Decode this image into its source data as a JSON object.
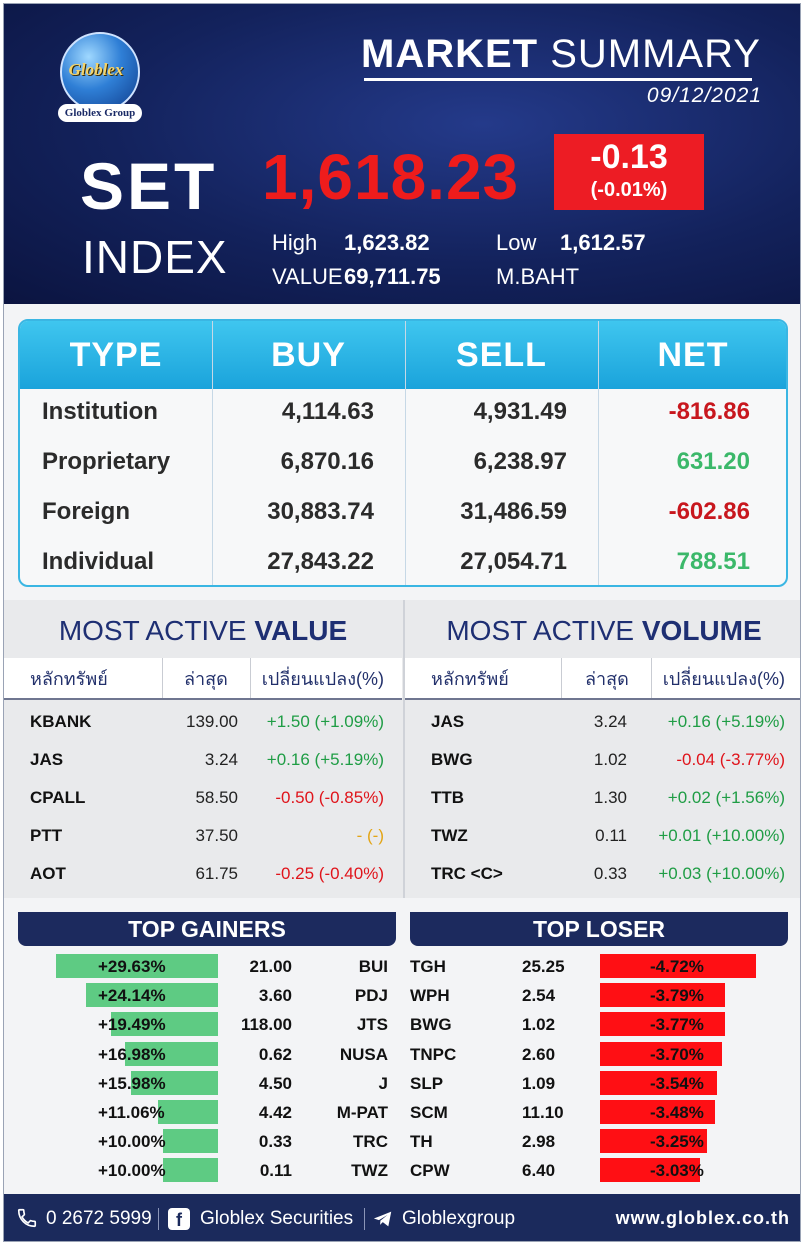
{
  "header": {
    "logo_text": "Globlex",
    "logo_group": "Globlex Group",
    "title_bold": "MARKET",
    "title_rest": " SUMMARY",
    "date": "09/12/2021",
    "set_label": "SET",
    "index_label": "INDEX",
    "index_value": "1,618.23",
    "change": "-0.13",
    "change_pct": "(-0.01%)",
    "high_label": "High",
    "high_value": "1,623.82",
    "low_label": "Low",
    "low_value": "1,612.57",
    "value_label": "VALUE",
    "value_amount": "69,711.75",
    "value_unit": "M.BAHT"
  },
  "investor_table": {
    "headers": [
      "TYPE",
      "BUY",
      "SELL",
      "NET"
    ],
    "rows": [
      {
        "type": "Institution",
        "buy": "4,114.63",
        "sell": "4,931.49",
        "net": "-816.86",
        "net_color": "#c8171e"
      },
      {
        "type": "Proprietary",
        "buy": "6,870.16",
        "sell": "6,238.97",
        "net": "631.20",
        "net_color": "#3bb86a"
      },
      {
        "type": "Foreign",
        "buy": "30,883.74",
        "sell": "31,486.59",
        "net": "-602.86",
        "net_color": "#c8171e"
      },
      {
        "type": "Individual",
        "buy": "27,843.22",
        "sell": "27,054.71",
        "net": "788.51",
        "net_color": "#3bb86a"
      }
    ]
  },
  "most_active_value": {
    "title_light": "MOST ACTIVE ",
    "title_bold": "VALUE",
    "col_symbol": "หลักทรัพย์",
    "col_last": "ล่าสุด",
    "col_change": "เปลี่ยนแปลง(%)",
    "rows": [
      {
        "symbol": "KBANK",
        "last": "139.00",
        "change": "+1.50 (+1.09%)",
        "color": "#1f9d45"
      },
      {
        "symbol": "JAS",
        "last": "3.24",
        "change": "+0.16 (+5.19%)",
        "color": "#1f9d45"
      },
      {
        "symbol": "CPALL",
        "last": "58.50",
        "change": "-0.50 (-0.85%)",
        "color": "#e0141b"
      },
      {
        "symbol": "PTT",
        "last": "37.50",
        "change": "- (-)",
        "color": "#e3a516"
      },
      {
        "symbol": "AOT",
        "last": "61.75",
        "change": "-0.25 (-0.40%)",
        "color": "#e0141b"
      }
    ]
  },
  "most_active_volume": {
    "title_light": "MOST ACTIVE ",
    "title_bold": "VOLUME",
    "col_symbol": "หลักทรัพย์",
    "col_last": "ล่าสุด",
    "col_change": "เปลี่ยนแปลง(%)",
    "rows": [
      {
        "symbol": "JAS",
        "last": "3.24",
        "change": "+0.16 (+5.19%)",
        "color": "#1f9d45"
      },
      {
        "symbol": "BWG",
        "last": "1.02",
        "change": "-0.04 (-3.77%)",
        "color": "#e0141b"
      },
      {
        "symbol": "TTB",
        "last": "1.30",
        "change": "+0.02 (+1.56%)",
        "color": "#1f9d45"
      },
      {
        "symbol": "TWZ",
        "last": "0.11",
        "change": "+0.01 (+10.00%)",
        "color": "#1f9d45"
      },
      {
        "symbol": "TRC <C>",
        "last": "0.33",
        "change": "+0.03 (+10.00%)",
        "color": "#1f9d45"
      }
    ]
  },
  "top_gainers": {
    "title": "TOP GAINERS",
    "rows": [
      {
        "pct": "+29.63%",
        "pct_value": 29.63,
        "price": "21.00",
        "symbol": "BUI"
      },
      {
        "pct": "+24.14%",
        "pct_value": 24.14,
        "price": "3.60",
        "symbol": "PDJ"
      },
      {
        "pct": "+19.49%",
        "pct_value": 19.49,
        "price": "118.00",
        "symbol": "JTS"
      },
      {
        "pct": "+16.98%",
        "pct_value": 16.98,
        "price": "0.62",
        "symbol": "NUSA"
      },
      {
        "pct": "+15.98%",
        "pct_value": 15.98,
        "price": "4.50",
        "symbol": "J"
      },
      {
        "pct": "+11.06%",
        "pct_value": 11.06,
        "price": "4.42",
        "symbol": "M-PAT"
      },
      {
        "pct": "+10.00%",
        "pct_value": 10.0,
        "price": "0.33",
        "symbol": "TRC"
      },
      {
        "pct": "+10.00%",
        "pct_value": 10.0,
        "price": "0.11",
        "symbol": "TWZ"
      }
    ]
  },
  "top_loser": {
    "title": "TOP LOSER",
    "rows": [
      {
        "symbol": "TGH",
        "price": "25.25",
        "pct": "-4.72%",
        "pct_value": 4.72
      },
      {
        "symbol": "WPH",
        "price": "2.54",
        "pct": "-3.79%",
        "pct_value": 3.79
      },
      {
        "symbol": "BWG",
        "price": "1.02",
        "pct": "-3.77%",
        "pct_value": 3.77
      },
      {
        "symbol": "TNPC",
        "price": "2.60",
        "pct": "-3.70%",
        "pct_value": 3.7
      },
      {
        "symbol": "SLP",
        "price": "1.09",
        "pct": "-3.54%",
        "pct_value": 3.54
      },
      {
        "symbol": "SCM",
        "price": "11.10",
        "pct": "-3.48%",
        "pct_value": 3.48
      },
      {
        "symbol": "TH",
        "price": "2.98",
        "pct": "-3.25%",
        "pct_value": 3.25
      },
      {
        "symbol": "CPW",
        "price": "6.40",
        "pct": "-3.03%",
        "pct_value": 3.03
      }
    ]
  },
  "footer": {
    "phone": "0 2672 5999",
    "facebook": "Globlex Securities",
    "telegram": "Globlexgroup",
    "website": "www.globlex.co.th",
    "icons": [
      "phone-icon",
      "facebook-icon",
      "telegram-icon"
    ]
  },
  "colors": {
    "header_bg": "#13225c",
    "index_red": "#ee1c1c",
    "table_accent": "#1aa3db",
    "gainer_green": "#5ecb83",
    "loser_red": "#ff0f14"
  }
}
